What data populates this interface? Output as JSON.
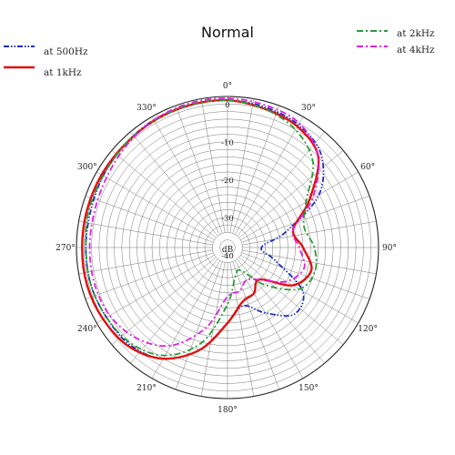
{
  "chart_data": {
    "type": "line",
    "subtype": "polar",
    "title": "Normal",
    "radial_unit": "dB",
    "radial_range_db": [
      -40,
      0
    ],
    "radial_tick_labels": [
      "0",
      "-10",
      "-20",
      "-30",
      "-40"
    ],
    "angle_tick_labels": [
      "0°",
      "30°",
      "60°",
      "90°",
      "120°",
      "150°",
      "180°",
      "210°",
      "240°",
      "270°",
      "300°",
      "330°"
    ],
    "angle_direction": "clockwise",
    "zero_angle": "top",
    "grid": true,
    "legend": [
      {
        "position": "top-left",
        "entries": [
          "at 500Hz",
          "at 1kHz"
        ]
      },
      {
        "position": "top-right",
        "entries": [
          "at 2kHz",
          "at 4kHz"
        ]
      }
    ],
    "angles_deg": [
      0,
      15,
      30,
      45,
      60,
      75,
      90,
      105,
      120,
      135,
      150,
      165,
      180,
      195,
      210,
      225,
      240,
      255,
      270,
      285,
      300,
      315,
      330,
      345
    ],
    "series": [
      {
        "name": "at 500Hz",
        "color": "#1f2fc0",
        "dash": "dashdotdot",
        "values": [
          -1,
          -1.5,
          -2.5,
          -5,
          -12,
          -24,
          -31,
          -27,
          -17,
          -15,
          -20,
          -24,
          -20,
          -12,
          -6,
          -3.5,
          -3,
          -2.5,
          -2.5,
          -2.5,
          -2,
          -1.5,
          -1,
          -1
        ]
      },
      {
        "name": "at 1kHz",
        "color": "#e01010",
        "dash": "solid",
        "values": [
          -1,
          -2,
          -3,
          -6,
          -15,
          -22,
          -20,
          -17,
          -20,
          -28,
          -26,
          -25,
          -20,
          -12,
          -6,
          -3,
          -2,
          -1.5,
          -1.5,
          -1.5,
          -1.5,
          -1.5,
          -1.2,
          -1
        ]
      },
      {
        "name": "at 2kHz",
        "color": "#2a9a3a",
        "dash": "dashdot",
        "values": [
          -1,
          -2,
          -4,
          -8,
          -16,
          -19,
          -17,
          -16,
          -18,
          -26,
          -33,
          -32,
          -25,
          -14,
          -7,
          -4,
          -3,
          -2.5,
          -2.5,
          -2,
          -2,
          -1.5,
          -1.2,
          -1
        ]
      },
      {
        "name": "at 4kHz",
        "color": "#e020e0",
        "dash": "dashdot",
        "values": [
          -0.5,
          -1,
          -2,
          -6,
          -14,
          -22,
          -21,
          -19,
          -22,
          -28,
          -30,
          -28,
          -27,
          -18,
          -10,
          -6,
          -4,
          -3.5,
          -3.5,
          -3.5,
          -3,
          -2,
          -1,
          -0.5
        ]
      }
    ]
  }
}
